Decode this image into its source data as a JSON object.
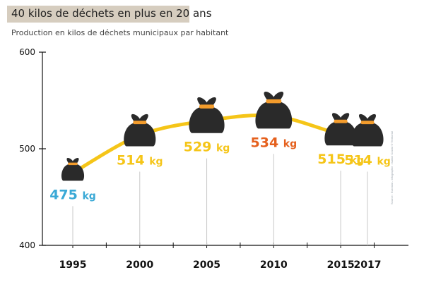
{
  "title": "40 kilos de déchets en plus en 20 ans",
  "subtitle": "Production en kilos de déchets municipaux par habitant",
  "source": "Source : Eurostat - Infographie : Isaline Colard © Territorial",
  "colors": {
    "line": "#f5c518",
    "bag": "#2a2a2a",
    "tie": "#f39c2c",
    "min_label": "#3aa9d6",
    "max_label": "#e5601d",
    "label": "#f5c518"
  },
  "icons": {
    "marker": "garbage-bag-icon"
  },
  "chart_data": {
    "type": "line",
    "title": "40 kilos de déchets en plus en 20 ans",
    "subtitle": "Production en kilos de déchets municipaux par habitant",
    "unit": "kg",
    "x": [
      "1995",
      "2000",
      "2005",
      "2010",
      "2015",
      "2017"
    ],
    "values": [
      475,
      514,
      529,
      534,
      515,
      514
    ],
    "ylim": [
      400,
      600
    ],
    "yticks": [
      "400",
      "500",
      "600"
    ],
    "grid": false,
    "legend": "none"
  }
}
